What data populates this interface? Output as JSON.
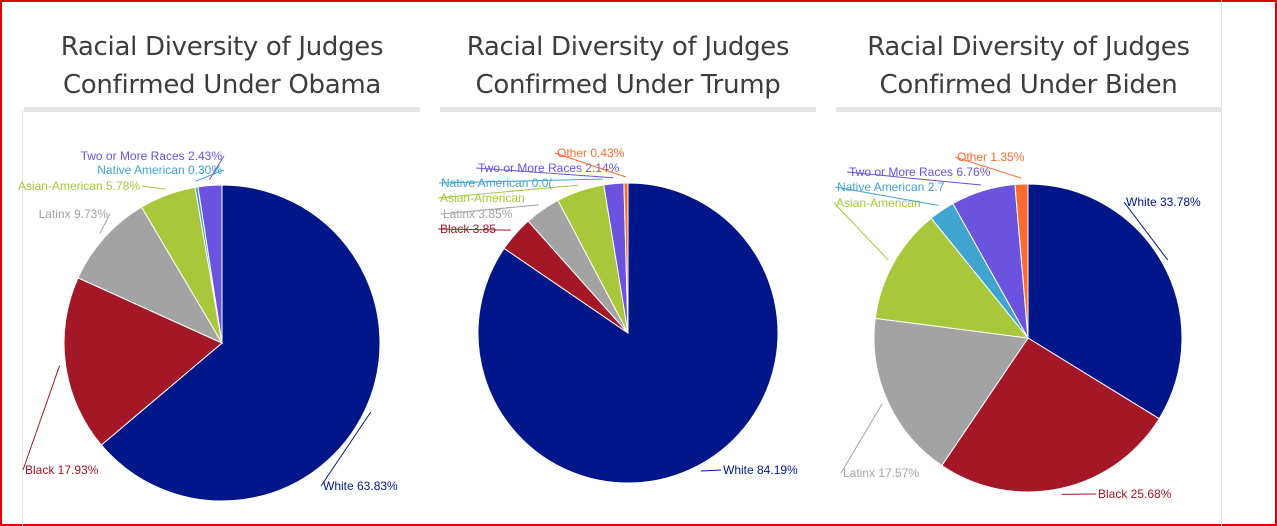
{
  "colors": {
    "white": "#001689",
    "black": "#a31727",
    "latinx": "#a3a3a3",
    "asian": "#a8c73a",
    "native": "#3fa4d0",
    "two_or_more": "#6b53df",
    "other": "#ff6a2f"
  },
  "chart_data": [
    {
      "type": "pie",
      "title": [
        "Racial Diversity of Judges",
        "Confirmed Under Obama"
      ],
      "slices": [
        {
          "key": "white",
          "label": "White 63.83%",
          "value": 63.83
        },
        {
          "key": "black",
          "label": "Black 17.93%",
          "value": 17.93
        },
        {
          "key": "latinx",
          "label": "Latinx 9.73%",
          "value": 9.73
        },
        {
          "key": "asian",
          "label": "Asian-American 5.78%",
          "value": 5.78
        },
        {
          "key": "native",
          "label": "Native American 0.30%",
          "value": 0.3
        },
        {
          "key": "two_or_more",
          "label": "Two or More Races 2.43%",
          "value": 2.43
        }
      ]
    },
    {
      "type": "pie",
      "title": [
        "Racial Diversity of Judges",
        "Confirmed Under Trump"
      ],
      "slices": [
        {
          "key": "white",
          "label": "White 84.19%",
          "value": 84.19
        },
        {
          "key": "black",
          "label": "Black 3.85",
          "value": 3.85
        },
        {
          "key": "latinx",
          "label": "Latinx 3.85%",
          "value": 3.85
        },
        {
          "key": "asian",
          "label": "Asian-American",
          "value": 5.13
        },
        {
          "key": "native",
          "label": "Native American 0.0(",
          "value": 0.0
        },
        {
          "key": "two_or_more",
          "label": "Two or More Races 2.14%",
          "value": 2.14
        },
        {
          "key": "other",
          "label": "Other 0.43%",
          "value": 0.43
        }
      ]
    },
    {
      "type": "pie",
      "title": [
        "Racial Diversity of Judges",
        "Confirmed Under Biden"
      ],
      "slices": [
        {
          "key": "white",
          "label": "White 33.78%",
          "value": 33.78
        },
        {
          "key": "black",
          "label": "Black 25.68%",
          "value": 25.68
        },
        {
          "key": "latinx",
          "label": "Latinx 17.57%",
          "value": 17.57
        },
        {
          "key": "asian",
          "label": "Asian-American",
          "value": 12.16
        },
        {
          "key": "native",
          "label": "Native American 2.7",
          "value": 2.7
        },
        {
          "key": "two_or_more",
          "label": "Two or More Races 6.76%",
          "value": 6.76
        },
        {
          "key": "other",
          "label": "Other 1.35%",
          "value": 1.35
        }
      ]
    }
  ]
}
